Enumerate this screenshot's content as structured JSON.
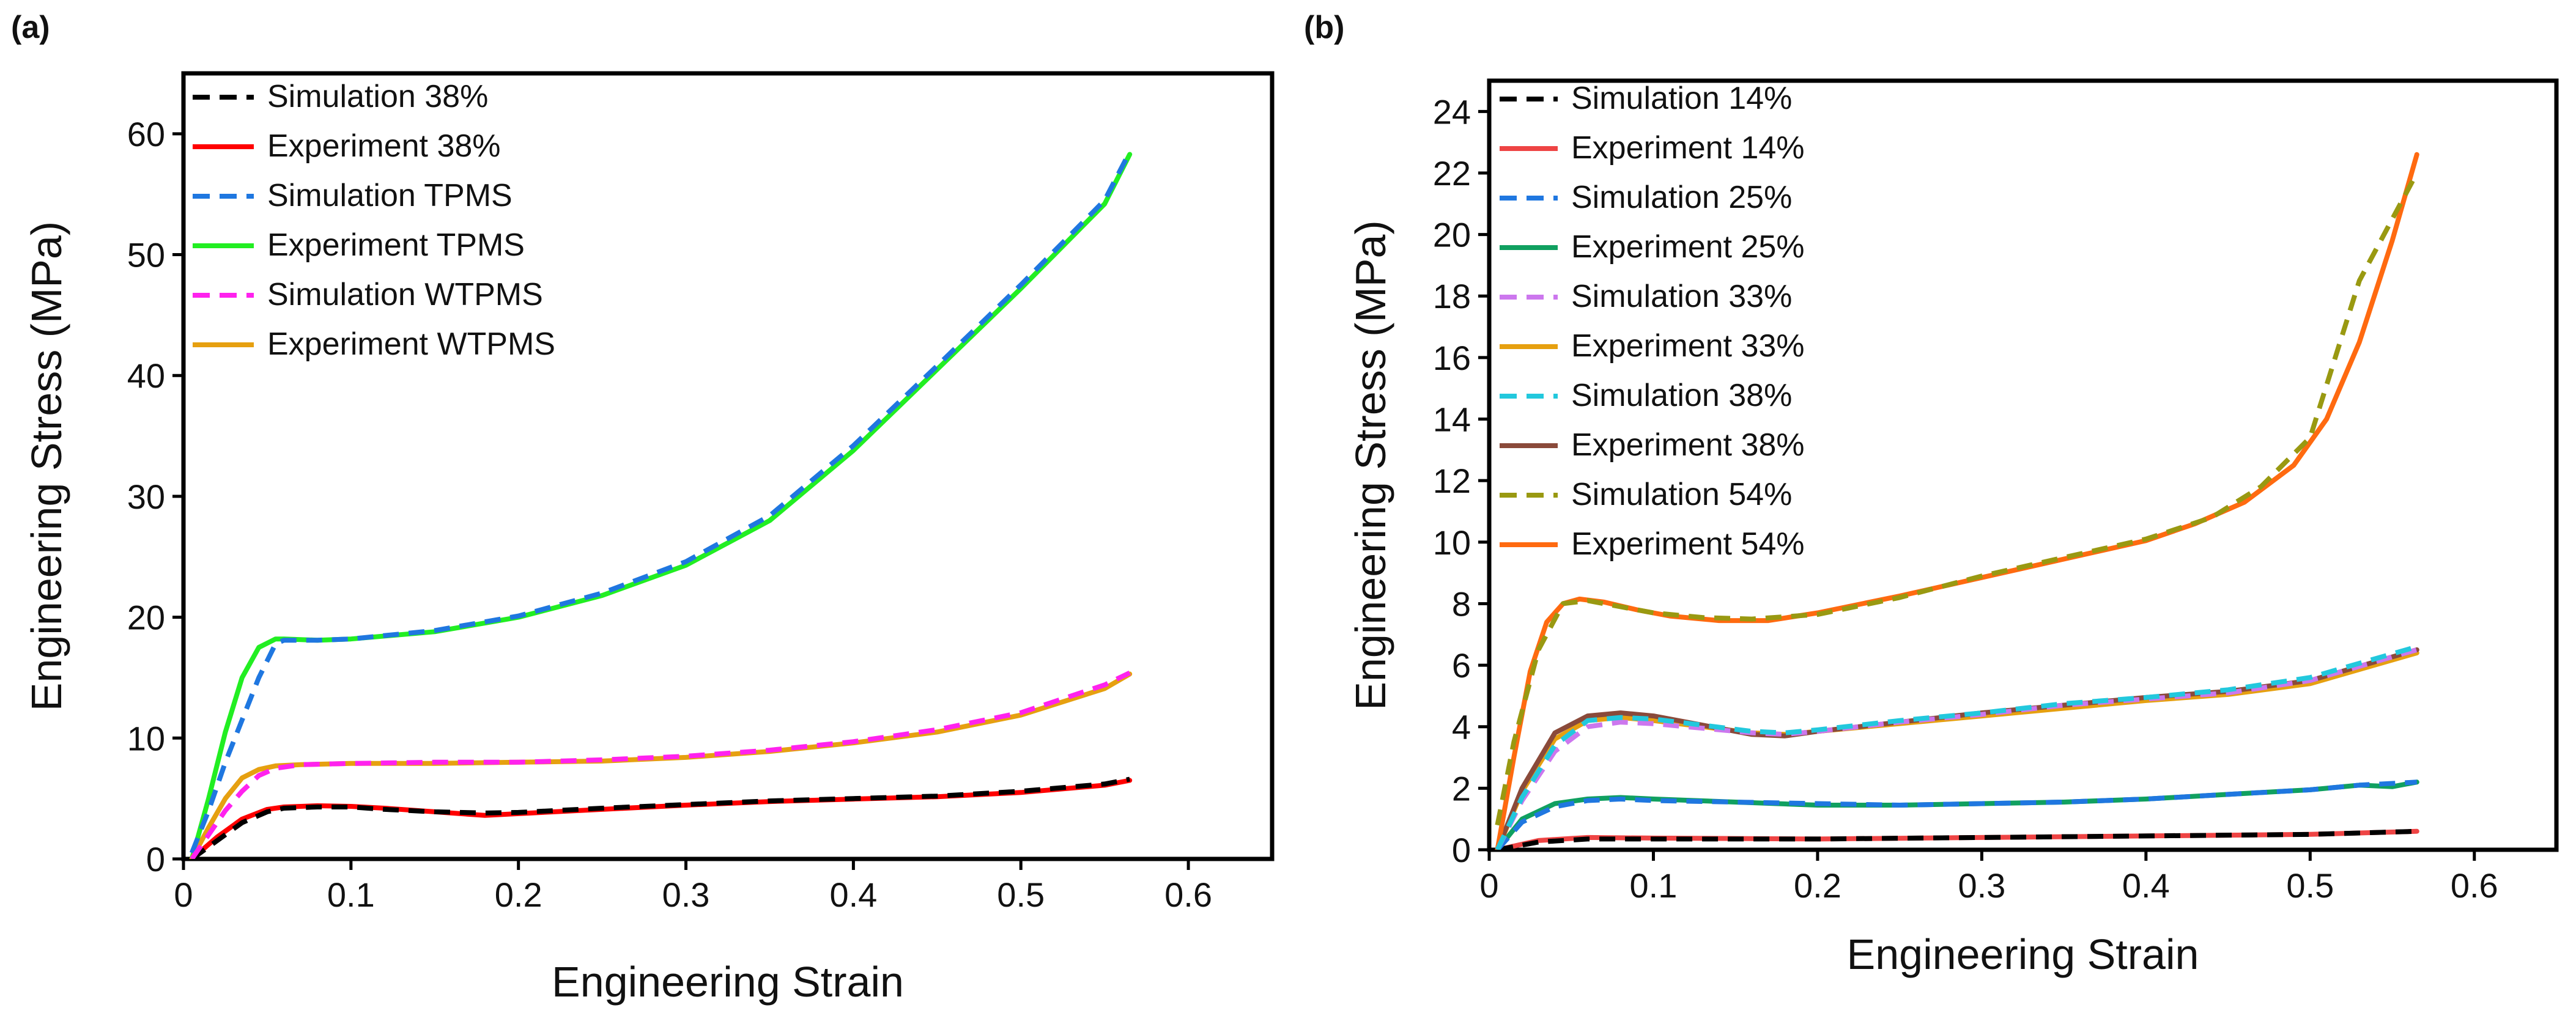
{
  "chart_data": [
    {
      "type": "line",
      "panel_label": "(a)",
      "title": "",
      "xlabel": "Engineering Strain",
      "ylabel": "Engineering Stress (MPa)",
      "xlim": [
        0,
        0.65
      ],
      "ylim": [
        0,
        65
      ],
      "xticks": [
        0,
        0.1,
        0.2,
        0.3,
        0.4,
        0.5,
        0.6
      ],
      "xtick_labels": [
        "0",
        "0.1",
        "0.2",
        "0.3",
        "0.4",
        "0.5",
        "0.6"
      ],
      "yticks": [
        0,
        10,
        20,
        30,
        40,
        50,
        60
      ],
      "ytick_labels": [
        "0",
        "10",
        "20",
        "30",
        "40",
        "50",
        "60"
      ],
      "legend_position": "top-left",
      "grid": false,
      "series": [
        {
          "name": "Simulation 38%",
          "color": "#000000",
          "dash": true,
          "x": [
            0.005,
            0.02,
            0.035,
            0.05,
            0.06,
            0.08,
            0.1,
            0.12,
            0.15,
            0.18,
            0.2,
            0.25,
            0.3,
            0.35,
            0.4,
            0.45,
            0.5,
            0.55,
            0.565
          ],
          "y": [
            0,
            1.5,
            3.0,
            3.9,
            4.2,
            4.3,
            4.3,
            4.1,
            3.9,
            3.8,
            3.85,
            4.2,
            4.5,
            4.8,
            5.0,
            5.2,
            5.6,
            6.2,
            6.6
          ]
        },
        {
          "name": "Experiment 38%",
          "color": "#ff0000",
          "dash": false,
          "x": [
            0.005,
            0.02,
            0.035,
            0.05,
            0.06,
            0.08,
            0.1,
            0.12,
            0.15,
            0.18,
            0.2,
            0.25,
            0.3,
            0.35,
            0.4,
            0.45,
            0.5,
            0.55,
            0.565
          ],
          "y": [
            0,
            1.8,
            3.3,
            4.1,
            4.3,
            4.4,
            4.35,
            4.2,
            3.9,
            3.6,
            3.75,
            4.1,
            4.45,
            4.75,
            4.95,
            5.15,
            5.5,
            6.1,
            6.5
          ]
        },
        {
          "name": "Simulation TPMS",
          "color": "#1f77e0",
          "dash": true,
          "x": [
            0.005,
            0.015,
            0.025,
            0.035,
            0.045,
            0.055,
            0.06,
            0.08,
            0.1,
            0.15,
            0.2,
            0.25,
            0.3,
            0.35,
            0.4,
            0.45,
            0.5,
            0.55,
            0.565
          ],
          "y": [
            0.5,
            4.0,
            8.0,
            11.5,
            15.0,
            17.8,
            18.1,
            18.1,
            18.2,
            18.9,
            20.1,
            22.0,
            24.6,
            28.4,
            34.2,
            40.8,
            47.5,
            54.5,
            58.5
          ]
        },
        {
          "name": "Experiment TPMS",
          "color": "#22ee22",
          "dash": false,
          "x": [
            0.005,
            0.015,
            0.025,
            0.035,
            0.045,
            0.055,
            0.06,
            0.08,
            0.1,
            0.15,
            0.2,
            0.25,
            0.3,
            0.35,
            0.4,
            0.45,
            0.5,
            0.55,
            0.565
          ],
          "y": [
            0,
            5.0,
            10.5,
            15.0,
            17.5,
            18.2,
            18.2,
            18.1,
            18.2,
            18.8,
            20.0,
            21.8,
            24.3,
            28.0,
            33.8,
            40.5,
            47.2,
            54.2,
            58.3
          ]
        },
        {
          "name": "Simulation WTPMS",
          "color": "#ff22ee",
          "dash": true,
          "x": [
            0.005,
            0.015,
            0.025,
            0.035,
            0.045,
            0.055,
            0.07,
            0.1,
            0.15,
            0.2,
            0.25,
            0.3,
            0.35,
            0.4,
            0.45,
            0.5,
            0.55,
            0.565
          ],
          "y": [
            0,
            2.0,
            4.0,
            5.6,
            6.9,
            7.5,
            7.8,
            7.9,
            8.0,
            8.0,
            8.2,
            8.5,
            9.0,
            9.7,
            10.7,
            12.1,
            14.4,
            15.4
          ]
        },
        {
          "name": "Experiment WTPMS",
          "color": "#e6a010",
          "dash": false,
          "x": [
            0.005,
            0.015,
            0.025,
            0.035,
            0.045,
            0.055,
            0.07,
            0.1,
            0.15,
            0.2,
            0.25,
            0.3,
            0.35,
            0.4,
            0.45,
            0.5,
            0.55,
            0.565
          ],
          "y": [
            0,
            2.6,
            5.0,
            6.7,
            7.4,
            7.7,
            7.8,
            7.9,
            7.9,
            8.0,
            8.1,
            8.4,
            8.9,
            9.6,
            10.5,
            11.9,
            14.1,
            15.3
          ]
        }
      ]
    },
    {
      "type": "line",
      "panel_label": "(b)",
      "title": "",
      "xlabel": "Engineering Strain",
      "ylabel": "Engineering Stress (MPa)",
      "xlim": [
        0,
        0.65
      ],
      "ylim": [
        0,
        25
      ],
      "xticks": [
        0,
        0.1,
        0.2,
        0.3,
        0.4,
        0.5,
        0.6
      ],
      "xtick_labels": [
        "0",
        "0.1",
        "0.2",
        "0.3",
        "0.4",
        "0.5",
        "0.6"
      ],
      "yticks": [
        0,
        2,
        4,
        6,
        8,
        10,
        12,
        14,
        16,
        18,
        20,
        22,
        24
      ],
      "ytick_labels": [
        "0",
        "2",
        "4",
        "6",
        "8",
        "10",
        "12",
        "14",
        "16",
        "18",
        "20",
        "22",
        "24"
      ],
      "legend_position": "top-left",
      "grid": false,
      "series": [
        {
          "name": "Simulation 14%",
          "color": "#000000",
          "dash": true,
          "x": [
            0.005,
            0.03,
            0.06,
            0.1,
            0.2,
            0.3,
            0.4,
            0.5,
            0.565
          ],
          "y": [
            0,
            0.25,
            0.35,
            0.35,
            0.35,
            0.4,
            0.45,
            0.5,
            0.6
          ]
        },
        {
          "name": "Experiment 14%",
          "color": "#ee4444",
          "dash": false,
          "x": [
            0.005,
            0.03,
            0.06,
            0.1,
            0.2,
            0.3,
            0.4,
            0.5,
            0.565
          ],
          "y": [
            0,
            0.3,
            0.4,
            0.38,
            0.35,
            0.4,
            0.45,
            0.5,
            0.6
          ]
        },
        {
          "name": "Simulation 25%",
          "color": "#1f77e0",
          "dash": true,
          "x": [
            0.005,
            0.02,
            0.04,
            0.06,
            0.08,
            0.1,
            0.15,
            0.2,
            0.25,
            0.3,
            0.35,
            0.4,
            0.45,
            0.5,
            0.53,
            0.565
          ],
          "y": [
            0,
            0.9,
            1.4,
            1.6,
            1.65,
            1.6,
            1.55,
            1.5,
            1.45,
            1.5,
            1.55,
            1.65,
            1.8,
            1.95,
            2.1,
            2.2
          ]
        },
        {
          "name": "Experiment 25%",
          "color": "#10a060",
          "dash": false,
          "x": [
            0.005,
            0.02,
            0.04,
            0.06,
            0.08,
            0.1,
            0.15,
            0.2,
            0.25,
            0.3,
            0.35,
            0.4,
            0.45,
            0.5,
            0.53,
            0.55,
            0.565
          ],
          "y": [
            0,
            1.0,
            1.5,
            1.65,
            1.7,
            1.65,
            1.55,
            1.45,
            1.45,
            1.5,
            1.55,
            1.65,
            1.8,
            1.95,
            2.1,
            2.05,
            2.2
          ]
        },
        {
          "name": "Simulation 33%",
          "color": "#cc77ee",
          "dash": true,
          "x": [
            0.005,
            0.02,
            0.04,
            0.06,
            0.08,
            0.1,
            0.13,
            0.16,
            0.18,
            0.2,
            0.25,
            0.3,
            0.35,
            0.4,
            0.45,
            0.5,
            0.565
          ],
          "y": [
            0,
            1.6,
            3.2,
            4.0,
            4.15,
            4.1,
            3.95,
            3.8,
            3.75,
            3.85,
            4.15,
            4.4,
            4.7,
            4.9,
            5.1,
            5.5,
            6.5
          ]
        },
        {
          "name": "Experiment 33%",
          "color": "#e6a010",
          "dash": false,
          "x": [
            0.005,
            0.02,
            0.04,
            0.06,
            0.08,
            0.1,
            0.13,
            0.16,
            0.18,
            0.2,
            0.25,
            0.3,
            0.35,
            0.4,
            0.45,
            0.5,
            0.565
          ],
          "y": [
            0,
            1.9,
            3.6,
            4.2,
            4.3,
            4.2,
            4.0,
            3.8,
            3.75,
            3.85,
            4.1,
            4.35,
            4.6,
            4.85,
            5.05,
            5.4,
            6.4
          ]
        },
        {
          "name": "Simulation 38%",
          "color": "#22c8dd",
          "dash": true,
          "x": [
            0.005,
            0.02,
            0.04,
            0.06,
            0.08,
            0.1,
            0.13,
            0.16,
            0.18,
            0.2,
            0.25,
            0.3,
            0.35,
            0.4,
            0.45,
            0.5,
            0.565
          ],
          "y": [
            0,
            1.7,
            3.4,
            4.2,
            4.3,
            4.25,
            4.05,
            3.85,
            3.8,
            3.9,
            4.2,
            4.45,
            4.75,
            4.95,
            5.2,
            5.6,
            6.6
          ]
        },
        {
          "name": "Experiment 38%",
          "color": "#8a4a3a",
          "dash": false,
          "x": [
            0.005,
            0.02,
            0.04,
            0.06,
            0.08,
            0.1,
            0.13,
            0.16,
            0.18,
            0.2,
            0.25,
            0.3,
            0.35,
            0.4,
            0.45,
            0.5,
            0.565
          ],
          "y": [
            0,
            2.0,
            3.8,
            4.35,
            4.45,
            4.35,
            4.05,
            3.75,
            3.7,
            3.85,
            4.15,
            4.45,
            4.7,
            4.95,
            5.15,
            5.5,
            6.5
          ]
        },
        {
          "name": "Simulation 54%",
          "color": "#999911",
          "dash": true,
          "x": [
            0.005,
            0.015,
            0.03,
            0.045,
            0.06,
            0.08,
            0.1,
            0.13,
            0.16,
            0.2,
            0.25,
            0.3,
            0.35,
            0.4,
            0.44,
            0.47,
            0.5,
            0.53,
            0.565
          ],
          "y": [
            0.8,
            3.5,
            6.5,
            8.0,
            8.1,
            7.9,
            7.7,
            7.55,
            7.5,
            7.65,
            8.2,
            8.9,
            9.5,
            10.1,
            10.8,
            11.8,
            13.4,
            18.5,
            22.0
          ]
        },
        {
          "name": "Experiment 54%",
          "color": "#ff6a10",
          "dash": false,
          "x": [
            0.005,
            0.015,
            0.025,
            0.035,
            0.045,
            0.055,
            0.07,
            0.09,
            0.11,
            0.14,
            0.17,
            0.2,
            0.25,
            0.3,
            0.35,
            0.4,
            0.43,
            0.46,
            0.49,
            0.51,
            0.53,
            0.55,
            0.565
          ],
          "y": [
            0,
            3.0,
            5.8,
            7.4,
            8.0,
            8.15,
            8.05,
            7.8,
            7.6,
            7.45,
            7.45,
            7.7,
            8.25,
            8.85,
            9.45,
            10.05,
            10.6,
            11.3,
            12.5,
            14.0,
            16.5,
            19.8,
            22.6
          ]
        }
      ]
    }
  ]
}
